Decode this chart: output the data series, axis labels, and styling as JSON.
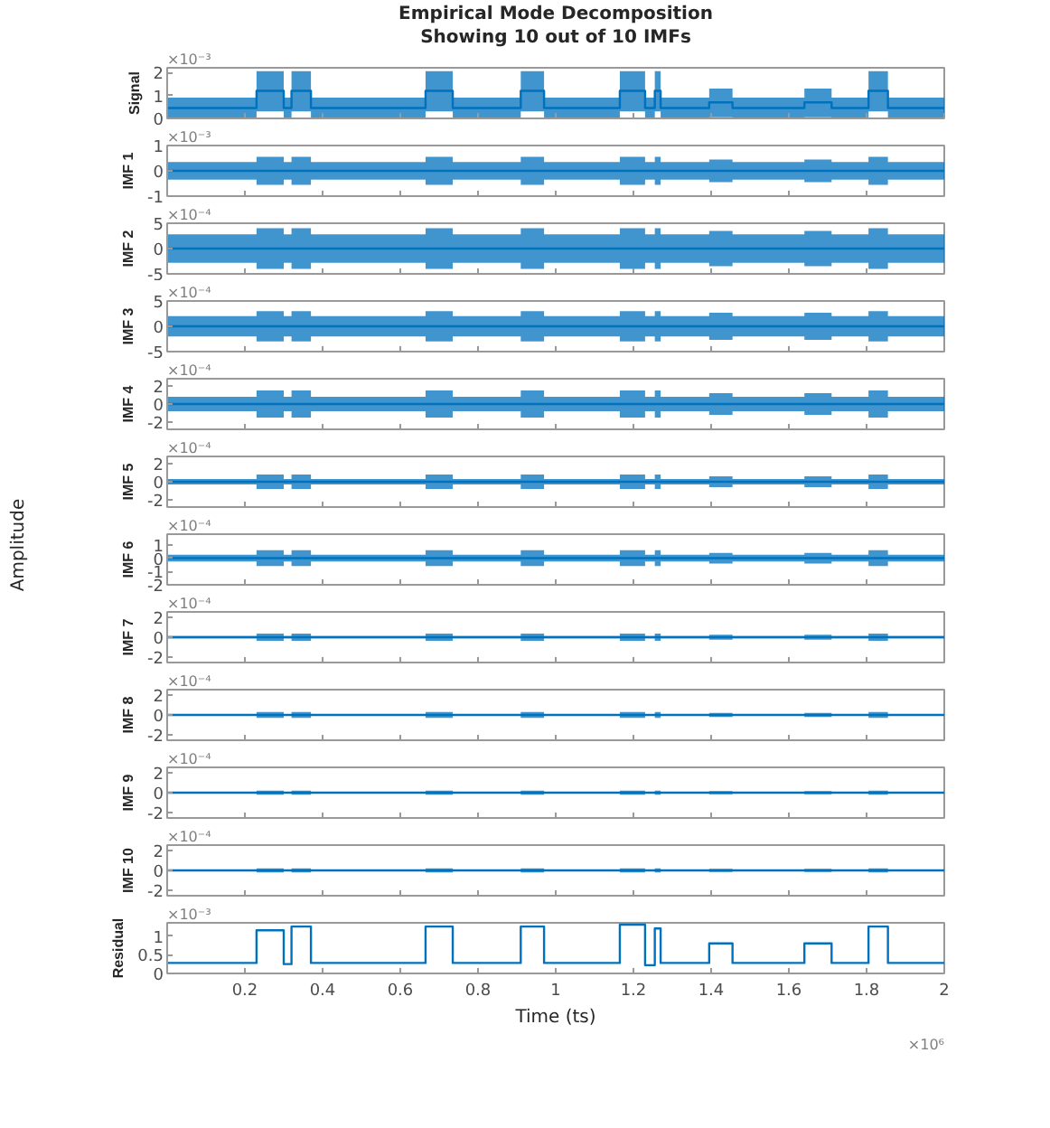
{
  "chart_data": [
    {
      "type": "step",
      "title": "Empirical Mode Decomposition",
      "subtitle": "Showing 10 out of 10 IMFs",
      "ylabel": "Signal",
      "annotations": [
        "×10⁻³"
      ],
      "xlim": [
        0,
        2
      ],
      "xticks": [
        0.2,
        0.4,
        0.6,
        0.8,
        1,
        1.2,
        1.4,
        1.6,
        1.8,
        2
      ],
      "ylim": [
        0,
        2.2
      ],
      "yticks": [
        0,
        1,
        2
      ],
      "tick_labels": "y",
      "x": [
        0,
        0.23,
        0.3,
        0.32,
        0.37,
        0.665,
        0.735,
        0.91,
        0.97,
        1.165,
        1.23,
        1.255,
        1.27,
        1.395,
        1.455,
        1.64,
        1.71,
        1.805,
        1.855,
        2
      ],
      "series": [
        {
          "color": "#0072bd",
          "values": [
            0.45,
            1.2,
            0.45,
            1.2,
            0.45,
            1.2,
            0.45,
            1.2,
            0.45,
            1.2,
            0.45,
            1.2,
            0.45,
            0.7,
            0.45,
            0.7,
            0.45,
            1.2,
            0.45,
            0.45
          ],
          "lower": [
            0,
            0.3,
            0,
            0.3,
            0,
            0.3,
            0,
            0.3,
            0,
            0.3,
            0,
            0.3,
            0,
            0.05,
            0,
            0.05,
            0,
            0.3,
            0,
            0
          ],
          "upper": [
            0.9,
            2.05,
            0.9,
            2.05,
            0.9,
            2.05,
            0.9,
            2.05,
            0.9,
            2.05,
            0.9,
            2.05,
            0.9,
            1.3,
            0.9,
            1.3,
            0.9,
            2.05,
            0.9,
            0.9
          ]
        }
      ]
    },
    {
      "type": "step",
      "ylabel": "IMF 1",
      "annotations": [
        "×10⁻³"
      ],
      "xlim": [
        0,
        2
      ],
      "xticks": [
        0.2,
        0.4,
        0.6,
        0.8,
        1,
        1.2,
        1.4,
        1.6,
        1.8,
        2
      ],
      "ylim": [
        -1,
        1
      ],
      "yticks": [
        -1,
        0,
        1
      ],
      "tick_labels": "y",
      "x": [
        0,
        0.23,
        0.3,
        0.32,
        0.37,
        0.665,
        0.735,
        0.91,
        0.97,
        1.165,
        1.23,
        1.255,
        1.27,
        1.395,
        1.455,
        1.64,
        1.71,
        1.805,
        1.855,
        2
      ],
      "series": [
        {
          "color": "#0072bd",
          "values": [
            0,
            0,
            0,
            0,
            0,
            0,
            0,
            0,
            0,
            0,
            0,
            0,
            0,
            0,
            0,
            0,
            0,
            0,
            0,
            0
          ],
          "lower": [
            -0.35,
            -0.55,
            -0.35,
            -0.55,
            -0.35,
            -0.55,
            -0.35,
            -0.55,
            -0.35,
            -0.55,
            -0.35,
            -0.55,
            -0.35,
            -0.45,
            -0.35,
            -0.45,
            -0.35,
            -0.55,
            -0.35,
            -0.35
          ],
          "upper": [
            0.35,
            0.55,
            0.35,
            0.55,
            0.35,
            0.55,
            0.35,
            0.55,
            0.35,
            0.55,
            0.35,
            0.55,
            0.35,
            0.45,
            0.35,
            0.45,
            0.35,
            0.55,
            0.35,
            0.35
          ]
        }
      ]
    },
    {
      "type": "step",
      "ylabel": "IMF 2",
      "annotations": [
        "×10⁻⁴"
      ],
      "xlim": [
        0,
        2
      ],
      "xticks": [
        0.2,
        0.4,
        0.6,
        0.8,
        1,
        1.2,
        1.4,
        1.6,
        1.8,
        2
      ],
      "ylim": [
        -5,
        5
      ],
      "yticks": [
        -5,
        0,
        5
      ],
      "tick_labels": "y",
      "x": [
        0,
        0.23,
        0.3,
        0.32,
        0.37,
        0.665,
        0.735,
        0.91,
        0.97,
        1.165,
        1.23,
        1.255,
        1.27,
        1.395,
        1.455,
        1.64,
        1.71,
        1.805,
        1.855,
        2
      ],
      "series": [
        {
          "color": "#0072bd",
          "values": [
            0,
            0,
            0,
            0,
            0,
            0,
            0,
            0,
            0,
            0,
            0,
            0,
            0,
            0,
            0,
            0,
            0,
            0,
            0,
            0
          ],
          "lower": [
            -2.8,
            -4,
            -2.8,
            -4,
            -2.8,
            -4,
            -2.8,
            -4,
            -2.8,
            -4,
            -2.8,
            -4,
            -2.8,
            -3.5,
            -2.8,
            -3.5,
            -2.8,
            -4,
            -2.8,
            -2.8
          ],
          "upper": [
            2.8,
            4,
            2.8,
            4,
            2.8,
            4,
            2.8,
            4,
            2.8,
            4,
            2.8,
            4,
            2.8,
            3.5,
            2.8,
            3.5,
            2.8,
            4,
            2.8,
            2.8
          ]
        }
      ]
    },
    {
      "type": "step",
      "ylabel": "IMF 3",
      "annotations": [
        "×10⁻⁴"
      ],
      "xlim": [
        0,
        2
      ],
      "xticks": [
        0.2,
        0.4,
        0.6,
        0.8,
        1,
        1.2,
        1.4,
        1.6,
        1.8,
        2
      ],
      "ylim": [
        -5,
        5
      ],
      "yticks": [
        -5,
        0,
        5
      ],
      "tick_labels": "y",
      "x": [
        0,
        0.23,
        0.3,
        0.32,
        0.37,
        0.665,
        0.735,
        0.91,
        0.97,
        1.165,
        1.23,
        1.255,
        1.27,
        1.395,
        1.455,
        1.64,
        1.71,
        1.805,
        1.855,
        2
      ],
      "series": [
        {
          "color": "#0072bd",
          "values": [
            0,
            0,
            0,
            0,
            0,
            0,
            0,
            0,
            0,
            0,
            0,
            0,
            0,
            0,
            0,
            0,
            0,
            0,
            0,
            0
          ],
          "lower": [
            -2,
            -3,
            -2,
            -3,
            -2,
            -3,
            -2,
            -3,
            -2,
            -3,
            -2,
            -3,
            -2,
            -2.7,
            -2,
            -2.7,
            -2,
            -3,
            -2,
            -2
          ],
          "upper": [
            2,
            3,
            2,
            3,
            2,
            3,
            2,
            3,
            2,
            3,
            2,
            3,
            2,
            2.7,
            2,
            2.7,
            2,
            3,
            2,
            2
          ]
        }
      ]
    },
    {
      "type": "step",
      "ylabel": "IMF 4",
      "annotations": [
        "×10⁻⁴"
      ],
      "xlim": [
        0,
        2
      ],
      "xticks": [
        0.2,
        0.4,
        0.6,
        0.8,
        1,
        1.2,
        1.4,
        1.6,
        1.8,
        2
      ],
      "ylim": [
        -2.8,
        2.8
      ],
      "yticks": [
        -2,
        0,
        2
      ],
      "tick_labels": "y",
      "x": [
        0,
        0.23,
        0.3,
        0.32,
        0.37,
        0.665,
        0.735,
        0.91,
        0.97,
        1.165,
        1.23,
        1.255,
        1.27,
        1.395,
        1.455,
        1.64,
        1.71,
        1.805,
        1.855,
        2
      ],
      "series": [
        {
          "color": "#0072bd",
          "values": [
            0,
            0,
            0,
            0,
            0,
            0,
            0,
            0,
            0,
            0,
            0,
            0,
            0,
            0,
            0,
            0,
            0,
            0,
            0,
            0
          ],
          "lower": [
            -0.8,
            -1.5,
            -0.8,
            -1.5,
            -0.8,
            -1.5,
            -0.8,
            -1.5,
            -0.8,
            -1.5,
            -0.8,
            -1.5,
            -0.8,
            -1.2,
            -0.8,
            -1.2,
            -0.8,
            -1.5,
            -0.8,
            -0.8
          ],
          "upper": [
            0.8,
            1.5,
            0.8,
            1.5,
            0.8,
            1.5,
            0.8,
            1.5,
            0.8,
            1.5,
            0.8,
            1.5,
            0.8,
            1.2,
            0.8,
            1.2,
            0.8,
            1.5,
            0.8,
            0.8
          ]
        }
      ]
    },
    {
      "type": "step",
      "ylabel": "IMF 5",
      "annotations": [
        "×10⁻⁴"
      ],
      "xlim": [
        0,
        2
      ],
      "xticks": [
        0.2,
        0.4,
        0.6,
        0.8,
        1,
        1.2,
        1.4,
        1.6,
        1.8,
        2
      ],
      "ylim": [
        -2.8,
        2.8
      ],
      "yticks": [
        -2,
        0,
        2
      ],
      "tick_labels": "y",
      "x": [
        0,
        0.23,
        0.3,
        0.32,
        0.37,
        0.665,
        0.735,
        0.91,
        0.97,
        1.165,
        1.23,
        1.255,
        1.27,
        1.395,
        1.455,
        1.64,
        1.71,
        1.805,
        1.855,
        2
      ],
      "series": [
        {
          "color": "#0072bd",
          "values": [
            0,
            0,
            0,
            0,
            0,
            0,
            0,
            0,
            0,
            0,
            0,
            0,
            0,
            0,
            0,
            0,
            0,
            0,
            0,
            0
          ],
          "lower": [
            -0.3,
            -0.8,
            -0.3,
            -0.8,
            -0.3,
            -0.8,
            -0.3,
            -0.8,
            -0.3,
            -0.8,
            -0.3,
            -0.8,
            -0.3,
            -0.6,
            -0.3,
            -0.6,
            -0.3,
            -0.8,
            -0.3,
            -0.3
          ],
          "upper": [
            0.3,
            0.8,
            0.3,
            0.8,
            0.3,
            0.8,
            0.3,
            0.8,
            0.3,
            0.8,
            0.3,
            0.8,
            0.3,
            0.6,
            0.3,
            0.6,
            0.3,
            0.8,
            0.3,
            0.3
          ]
        }
      ]
    },
    {
      "type": "step",
      "ylabel": "IMF 6",
      "annotations": [
        "×10⁻⁴",
        "Amplitude"
      ],
      "xlim": [
        0,
        2
      ],
      "xticks": [
        0.2,
        0.4,
        0.6,
        0.8,
        1,
        1.2,
        1.4,
        1.6,
        1.8,
        2
      ],
      "ylim": [
        -2,
        1.8
      ],
      "yticks": [
        -2,
        -1,
        0,
        1
      ],
      "tick_labels": "y",
      "x": [
        0,
        0.23,
        0.3,
        0.32,
        0.37,
        0.665,
        0.735,
        0.91,
        0.97,
        1.165,
        1.23,
        1.255,
        1.27,
        1.395,
        1.455,
        1.64,
        1.71,
        1.805,
        1.855,
        2
      ],
      "series": [
        {
          "color": "#0072bd",
          "values": [
            0,
            0,
            0,
            0,
            0,
            0,
            0,
            0,
            0,
            0,
            0,
            0,
            0,
            0,
            0,
            0,
            0,
            0,
            0,
            0
          ],
          "lower": [
            -0.25,
            -0.6,
            -0.25,
            -0.6,
            -0.25,
            -0.6,
            -0.25,
            -0.6,
            -0.25,
            -0.6,
            -0.25,
            -0.6,
            -0.25,
            -0.4,
            -0.25,
            -0.4,
            -0.25,
            -0.6,
            -0.25,
            -0.25
          ],
          "upper": [
            0.25,
            0.6,
            0.25,
            0.6,
            0.25,
            0.6,
            0.25,
            0.6,
            0.25,
            0.6,
            0.25,
            0.6,
            0.25,
            0.4,
            0.25,
            0.4,
            0.25,
            0.6,
            0.25,
            0.25
          ]
        }
      ]
    },
    {
      "type": "step",
      "ylabel": "IMF 7",
      "annotations": [
        "×10⁻⁴"
      ],
      "xlim": [
        0,
        2
      ],
      "xticks": [
        0.2,
        0.4,
        0.6,
        0.8,
        1,
        1.2,
        1.4,
        1.6,
        1.8,
        2
      ],
      "ylim": [
        -2.5,
        2.5
      ],
      "yticks": [
        -2,
        0,
        2
      ],
      "tick_labels": "y",
      "x": [
        0,
        0.23,
        0.3,
        0.32,
        0.37,
        0.665,
        0.735,
        0.91,
        0.97,
        1.165,
        1.23,
        1.255,
        1.27,
        1.395,
        1.455,
        1.64,
        1.71,
        1.805,
        1.855,
        2
      ],
      "series": [
        {
          "color": "#0072bd",
          "values": [
            0,
            0,
            0,
            0,
            0,
            0,
            0,
            0,
            0,
            0,
            0,
            0,
            0,
            0,
            0,
            0,
            0,
            0,
            0,
            0
          ],
          "lower": [
            -0.12,
            -0.35,
            -0.12,
            -0.35,
            -0.12,
            -0.35,
            -0.12,
            -0.35,
            -0.12,
            -0.35,
            -0.12,
            -0.35,
            -0.12,
            -0.25,
            -0.12,
            -0.25,
            -0.12,
            -0.35,
            -0.12,
            -0.12
          ],
          "upper": [
            0.12,
            0.35,
            0.12,
            0.35,
            0.12,
            0.35,
            0.12,
            0.35,
            0.12,
            0.35,
            0.12,
            0.35,
            0.12,
            0.25,
            0.12,
            0.25,
            0.12,
            0.35,
            0.12,
            0.12
          ]
        }
      ]
    },
    {
      "type": "step",
      "ylabel": "IMF 8",
      "annotations": [
        "×10⁻⁴"
      ],
      "xlim": [
        0,
        2
      ],
      "xticks": [
        0.2,
        0.4,
        0.6,
        0.8,
        1,
        1.2,
        1.4,
        1.6,
        1.8,
        2
      ],
      "ylim": [
        -2.5,
        2.5
      ],
      "yticks": [
        -2,
        0,
        2
      ],
      "tick_labels": "y",
      "x": [
        0,
        0.23,
        0.3,
        0.32,
        0.37,
        0.665,
        0.735,
        0.91,
        0.97,
        1.165,
        1.23,
        1.255,
        1.27,
        1.395,
        1.455,
        1.64,
        1.71,
        1.805,
        1.855,
        2
      ],
      "series": [
        {
          "color": "#0072bd",
          "values": [
            0,
            0,
            0,
            0,
            0,
            0,
            0,
            0,
            0,
            0,
            0,
            0,
            0,
            0,
            0,
            0,
            0,
            0,
            0,
            0
          ],
          "lower": [
            -0.1,
            -0.3,
            -0.1,
            -0.3,
            -0.1,
            -0.3,
            -0.1,
            -0.3,
            -0.1,
            -0.3,
            -0.1,
            -0.3,
            -0.1,
            -0.2,
            -0.1,
            -0.2,
            -0.1,
            -0.3,
            -0.1,
            -0.1
          ],
          "upper": [
            0.1,
            0.3,
            0.1,
            0.3,
            0.1,
            0.3,
            0.1,
            0.3,
            0.1,
            0.3,
            0.1,
            0.3,
            0.1,
            0.2,
            0.1,
            0.2,
            0.1,
            0.3,
            0.1,
            0.1
          ]
        }
      ]
    },
    {
      "type": "step",
      "ylabel": "IMF 9",
      "annotations": [
        "×10⁻⁴"
      ],
      "xlim": [
        0,
        2
      ],
      "xticks": [
        0.2,
        0.4,
        0.6,
        0.8,
        1,
        1.2,
        1.4,
        1.6,
        1.8,
        2
      ],
      "ylim": [
        -2.5,
        2.5
      ],
      "yticks": [
        -2,
        0,
        2
      ],
      "tick_labels": "y",
      "x": [
        0,
        0.23,
        0.3,
        0.32,
        0.37,
        0.665,
        0.735,
        0.91,
        0.97,
        1.165,
        1.23,
        1.255,
        1.27,
        1.395,
        1.455,
        1.64,
        1.71,
        1.805,
        1.855,
        2
      ],
      "series": [
        {
          "color": "#0072bd",
          "values": [
            0,
            0,
            0,
            0,
            0,
            0,
            0,
            0,
            0,
            0,
            0,
            0,
            0,
            0,
            0,
            0,
            0,
            0,
            0,
            0
          ],
          "lower": [
            -0.05,
            -0.2,
            -0.05,
            -0.2,
            -0.05,
            -0.2,
            -0.05,
            -0.2,
            -0.05,
            -0.2,
            -0.05,
            -0.2,
            -0.05,
            -0.15,
            -0.05,
            -0.15,
            -0.05,
            -0.2,
            -0.05,
            -0.05
          ],
          "upper": [
            0.05,
            0.2,
            0.05,
            0.2,
            0.05,
            0.2,
            0.05,
            0.2,
            0.05,
            0.2,
            0.05,
            0.2,
            0.05,
            0.15,
            0.05,
            0.15,
            0.05,
            0.2,
            0.05,
            0.05
          ]
        }
      ]
    },
    {
      "type": "step",
      "ylabel": "IMF 10",
      "annotations": [
        "×10⁻⁴"
      ],
      "xlim": [
        0,
        2
      ],
      "xticks": [
        0.2,
        0.4,
        0.6,
        0.8,
        1,
        1.2,
        1.4,
        1.6,
        1.8,
        2
      ],
      "ylim": [
        -2.5,
        2.5
      ],
      "yticks": [
        -2,
        0,
        2
      ],
      "tick_labels": "y",
      "x": [
        0,
        0.23,
        0.3,
        0.32,
        0.37,
        0.665,
        0.735,
        0.91,
        0.97,
        1.165,
        1.23,
        1.255,
        1.27,
        1.395,
        1.455,
        1.64,
        1.71,
        1.805,
        1.855,
        2
      ],
      "series": [
        {
          "color": "#0072bd",
          "values": [
            0,
            0,
            0,
            0,
            0,
            0,
            0,
            0,
            0,
            0,
            0,
            0,
            0,
            0,
            0,
            0,
            0,
            0,
            0,
            0
          ],
          "lower": [
            -0.05,
            -0.2,
            -0.05,
            -0.2,
            -0.05,
            -0.2,
            -0.05,
            -0.2,
            -0.05,
            -0.2,
            -0.05,
            -0.2,
            -0.05,
            -0.15,
            -0.05,
            -0.15,
            -0.05,
            -0.2,
            -0.05,
            -0.05
          ],
          "upper": [
            0.05,
            0.2,
            0.05,
            0.2,
            0.05,
            0.2,
            0.05,
            0.2,
            0.05,
            0.2,
            0.05,
            0.2,
            0.05,
            0.15,
            0.05,
            0.15,
            0.05,
            0.2,
            0.05,
            0.05
          ]
        }
      ]
    },
    {
      "type": "step",
      "ylabel": "Residual",
      "xlabel": "Time (ts)",
      "annotations": [
        "×10⁻³",
        "×10⁶"
      ],
      "xlim": [
        0,
        2
      ],
      "xticks": [
        0.2,
        0.4,
        0.6,
        0.8,
        1,
        1.2,
        1.4,
        1.6,
        1.8,
        2
      ],
      "ylim": [
        0,
        1.35
      ],
      "yticks": [
        0,
        0.5,
        1
      ],
      "x": [
        0,
        0.23,
        0.3,
        0.32,
        0.37,
        0.665,
        0.735,
        0.91,
        0.97,
        1.165,
        1.23,
        1.255,
        1.27,
        1.395,
        1.455,
        1.64,
        1.71,
        1.805,
        1.855,
        2
      ],
      "series": [
        {
          "color": "#0072bd",
          "values": [
            0.28,
            1.15,
            0.25,
            1.25,
            0.28,
            1.25,
            0.28,
            1.25,
            0.28,
            1.3,
            0.22,
            1.2,
            0.28,
            0.8,
            0.28,
            0.8,
            0.28,
            1.25,
            0.28,
            0.28
          ]
        }
      ]
    }
  ]
}
